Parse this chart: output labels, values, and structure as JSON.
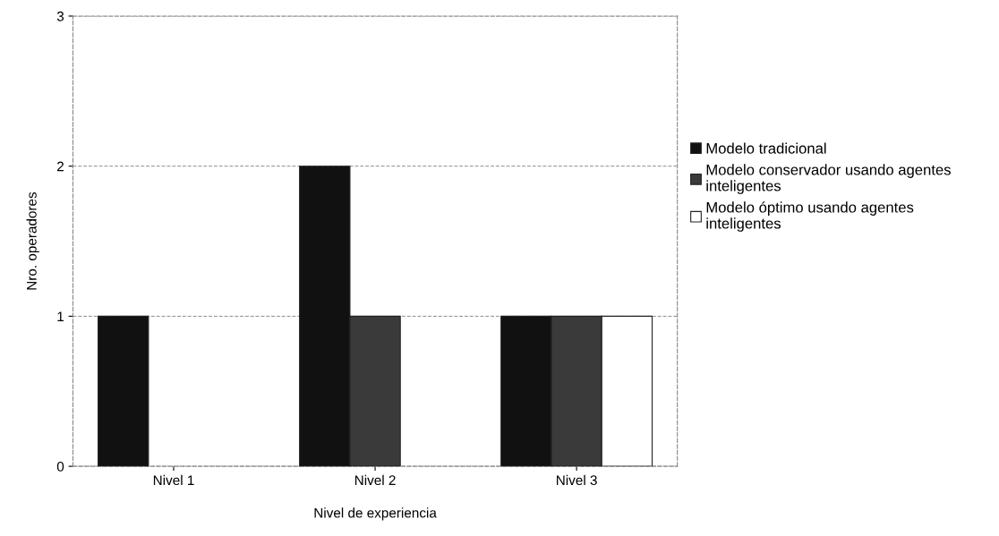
{
  "chart_data": {
    "type": "bar",
    "xlabel": "Nivel de experiencia",
    "ylabel": "Nro. operadores",
    "categories": [
      "Nivel 1",
      "Nivel 2",
      "Nivel 3"
    ],
    "series": [
      {
        "name": "Modelo tradicional",
        "color": "#111111",
        "values": [
          1,
          2,
          1
        ]
      },
      {
        "name": "Modelo conservador usando agentes\ninteligentes",
        "color": "#3a3a3a",
        "values": [
          0,
          1,
          1
        ]
      },
      {
        "name": "Modelo óptimo usando agentes\ninteligentes",
        "color": "#ffffff",
        "values": [
          0,
          0,
          1
        ]
      }
    ],
    "ylim": [
      0,
      3
    ],
    "yticks": [
      0,
      1,
      2,
      3
    ],
    "grid": "y",
    "legend": "right"
  }
}
